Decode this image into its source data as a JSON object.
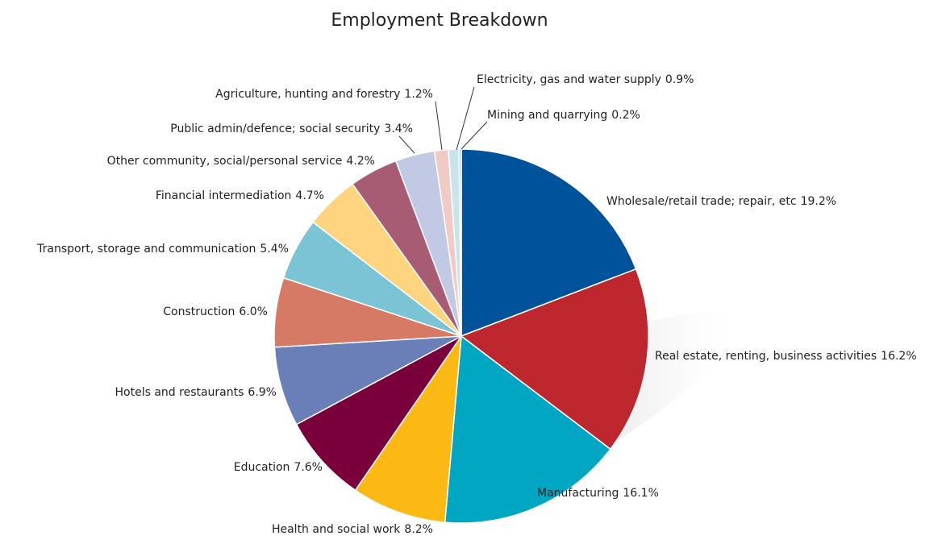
{
  "chart_data": {
    "type": "pie",
    "title": "Employment Breakdown",
    "categories": [
      "Wholesale/retail trade; repair, etc",
      "Real estate, renting, business activities",
      "Manufacturing",
      "Health and social work",
      "Education",
      "Hotels and restaurants",
      "Construction",
      "Transport, storage and communication",
      "Financial intermediation",
      "Other community, social/personal service",
      "Public admin/defence; social security",
      "Agriculture, hunting and forestry",
      "Electricity, gas and water supply",
      "Mining and quarrying"
    ],
    "values": [
      19.2,
      16.2,
      16.1,
      8.2,
      7.6,
      6.9,
      6.0,
      5.4,
      4.7,
      4.2,
      3.4,
      1.2,
      0.9,
      0.2
    ],
    "value_labels": [
      "19.2%",
      "16.2%",
      "16.1%",
      "8.2%",
      "7.6%",
      "6.9%",
      "6.0%",
      "5.4%",
      "4.7%",
      "4.2%",
      "3.4%",
      "1.2%",
      "0.9%",
      "0.2%"
    ],
    "colors": [
      "#00529b",
      "#be272d",
      "#00a6c2",
      "#fdb913",
      "#7a003c",
      "#6a7fb8",
      "#d67a66",
      "#7ac4d6",
      "#fed57e",
      "#a85c74",
      "#c1c9e4",
      "#f0cac4",
      "#c8e4ec",
      "#a9d3e1"
    ]
  }
}
